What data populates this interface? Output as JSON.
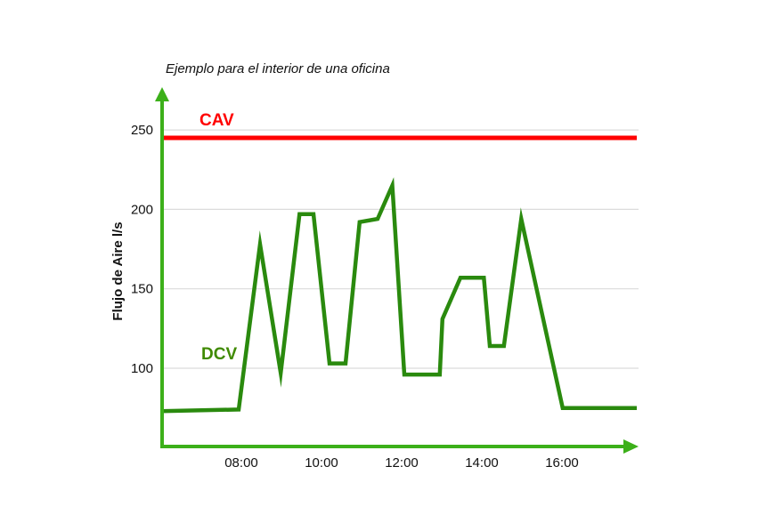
{
  "chart_data": {
    "type": "line",
    "title": "Ejemplo para el interior de una oficina",
    "ylabel": "Flujo de Aire l/s",
    "xlabel": "",
    "x_ticks": [
      "08:00",
      "10:00",
      "12:00",
      "14:00",
      "16:00"
    ],
    "y_ticks": [
      100,
      150,
      200,
      250
    ],
    "xlim": [
      "06:00",
      "17:52"
    ],
    "ylim": [
      50,
      276
    ],
    "grid": "horizontal",
    "axis_color": "#3cb01a",
    "series": [
      {
        "name": "CAV",
        "color": "#ff0000",
        "x": [
          "06:00",
          "17:52"
        ],
        "values": [
          245,
          245
        ]
      },
      {
        "name": "DCV",
        "color": "#2a8a0e",
        "label_color": "#3f8a00",
        "x": [
          "06:00",
          "07:56",
          "08:28",
          "08:59",
          "09:27",
          "09:48",
          "10:12",
          "10:36",
          "10:57",
          "11:24",
          "11:46",
          "12:04",
          "12:57",
          "13:01",
          "13:28",
          "14:03",
          "14:12",
          "14:33",
          "14:59",
          "16:01",
          "17:52"
        ],
        "values": [
          73,
          74,
          178,
          97,
          197,
          197,
          103,
          103,
          192,
          194,
          215,
          96,
          96,
          131,
          157,
          157,
          114,
          114,
          194,
          75,
          75
        ]
      }
    ]
  }
}
